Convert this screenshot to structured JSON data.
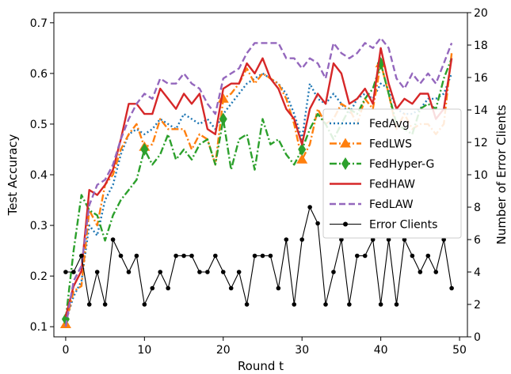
{
  "chart_data": {
    "type": "line",
    "xlabel": "Round t",
    "ylabel_left": "Test Accuracy",
    "ylabel_right": "Number of Error Clients",
    "xlim": [
      -1.5,
      51
    ],
    "ylim_left": [
      0.08,
      0.72
    ],
    "ylim_right": [
      0,
      20
    ],
    "x_ticks": [
      0,
      10,
      20,
      30,
      40,
      50
    ],
    "y_ticks_left": [
      0.1,
      0.2,
      0.3,
      0.4,
      0.5,
      0.6,
      0.7
    ],
    "y_ticks_right": [
      0,
      2,
      4,
      6,
      8,
      10,
      12,
      14,
      16,
      18,
      20
    ],
    "grid": false,
    "legend_position": "center-right",
    "x": [
      0,
      1,
      2,
      3,
      4,
      5,
      6,
      7,
      8,
      9,
      10,
      11,
      12,
      13,
      14,
      15,
      16,
      17,
      18,
      19,
      20,
      21,
      22,
      23,
      24,
      25,
      26,
      27,
      28,
      29,
      30,
      31,
      32,
      33,
      34,
      35,
      36,
      37,
      38,
      39,
      40,
      41,
      42,
      43,
      44,
      45,
      46,
      47,
      48,
      49
    ],
    "series": [
      {
        "name": "FedAvg",
        "axis": "left",
        "color": "#1f77b4",
        "style": "dotted",
        "marker": "none",
        "values": [
          0.11,
          0.16,
          0.19,
          0.3,
          0.28,
          0.35,
          0.38,
          0.44,
          0.48,
          0.49,
          0.48,
          0.49,
          0.51,
          0.5,
          0.49,
          0.52,
          0.51,
          0.5,
          0.51,
          0.49,
          0.52,
          0.54,
          0.56,
          0.58,
          0.59,
          0.6,
          0.59,
          0.58,
          0.56,
          0.52,
          0.47,
          0.58,
          0.55,
          0.54,
          0.56,
          0.54,
          0.52,
          0.55,
          0.56,
          0.55,
          0.58,
          0.57,
          0.53,
          0.52,
          0.52,
          0.53,
          0.55,
          0.55,
          0.56,
          0.6
        ]
      },
      {
        "name": "FedLWS",
        "axis": "left",
        "color": "#ff7f0e",
        "style": "dashdot",
        "marker": "triangle",
        "marker_every": 10,
        "values": [
          0.105,
          0.17,
          0.18,
          0.33,
          0.3,
          0.38,
          0.4,
          0.45,
          0.48,
          0.5,
          0.455,
          0.46,
          0.51,
          0.49,
          0.49,
          0.49,
          0.45,
          0.48,
          0.47,
          0.42,
          0.55,
          0.56,
          0.58,
          0.61,
          0.58,
          0.6,
          0.59,
          0.58,
          0.55,
          0.5,
          0.43,
          0.46,
          0.53,
          0.5,
          0.51,
          0.54,
          0.53,
          0.5,
          0.55,
          0.53,
          0.62,
          0.56,
          0.49,
          0.52,
          0.49,
          0.5,
          0.5,
          0.48,
          0.5,
          0.64
        ]
      },
      {
        "name": "FedHyper-G",
        "axis": "left",
        "color": "#2ca02c",
        "style": "dashdot",
        "marker": "diamond",
        "marker_every": 10,
        "values": [
          0.115,
          0.25,
          0.36,
          0.33,
          0.32,
          0.27,
          0.32,
          0.35,
          0.37,
          0.39,
          0.45,
          0.42,
          0.44,
          0.48,
          0.43,
          0.45,
          0.43,
          0.46,
          0.47,
          0.42,
          0.51,
          0.41,
          0.47,
          0.48,
          0.41,
          0.51,
          0.46,
          0.47,
          0.44,
          0.42,
          0.45,
          0.49,
          0.52,
          0.5,
          0.47,
          0.5,
          0.53,
          0.52,
          0.55,
          0.57,
          0.62,
          0.56,
          0.5,
          0.49,
          0.48,
          0.53,
          0.54,
          0.53,
          0.59,
          0.63
        ]
      },
      {
        "name": "FedHAW",
        "axis": "left",
        "color": "#d62728",
        "style": "solid",
        "marker": "none",
        "values": [
          0.12,
          0.18,
          0.21,
          0.37,
          0.36,
          0.38,
          0.41,
          0.47,
          0.54,
          0.54,
          0.52,
          0.52,
          0.57,
          0.55,
          0.53,
          0.56,
          0.54,
          0.56,
          0.49,
          0.48,
          0.57,
          0.58,
          0.58,
          0.62,
          0.6,
          0.63,
          0.59,
          0.57,
          0.53,
          0.51,
          0.46,
          0.53,
          0.56,
          0.54,
          0.62,
          0.6,
          0.54,
          0.55,
          0.57,
          0.54,
          0.65,
          0.58,
          0.53,
          0.55,
          0.54,
          0.56,
          0.56,
          0.51,
          0.53,
          0.63
        ]
      },
      {
        "name": "FedLAW",
        "axis": "left",
        "color": "#9467bd",
        "style": "dashed",
        "marker": "none",
        "values": [
          0.1,
          0.19,
          0.22,
          0.34,
          0.38,
          0.39,
          0.42,
          0.47,
          0.51,
          0.54,
          0.56,
          0.55,
          0.59,
          0.58,
          0.58,
          0.6,
          0.58,
          0.57,
          0.54,
          0.52,
          0.59,
          0.6,
          0.61,
          0.64,
          0.66,
          0.66,
          0.66,
          0.66,
          0.63,
          0.63,
          0.61,
          0.63,
          0.62,
          0.59,
          0.66,
          0.64,
          0.63,
          0.64,
          0.66,
          0.65,
          0.67,
          0.65,
          0.59,
          0.57,
          0.6,
          0.58,
          0.6,
          0.58,
          0.62,
          0.66
        ]
      },
      {
        "name": "Error Clients",
        "axis": "right",
        "color": "#000000",
        "style": "solid",
        "marker": "circle",
        "values": [
          4,
          4,
          5,
          2,
          4,
          2,
          6,
          5,
          4,
          5,
          2,
          3,
          4,
          3,
          5,
          5,
          5,
          4,
          4,
          5,
          4,
          3,
          4,
          2,
          5,
          5,
          5,
          3,
          6,
          2,
          6,
          8,
          7,
          2,
          4,
          6,
          2,
          5,
          5,
          6,
          2,
          6,
          2,
          6,
          5,
          4,
          5,
          4,
          6,
          3
        ]
      }
    ]
  }
}
